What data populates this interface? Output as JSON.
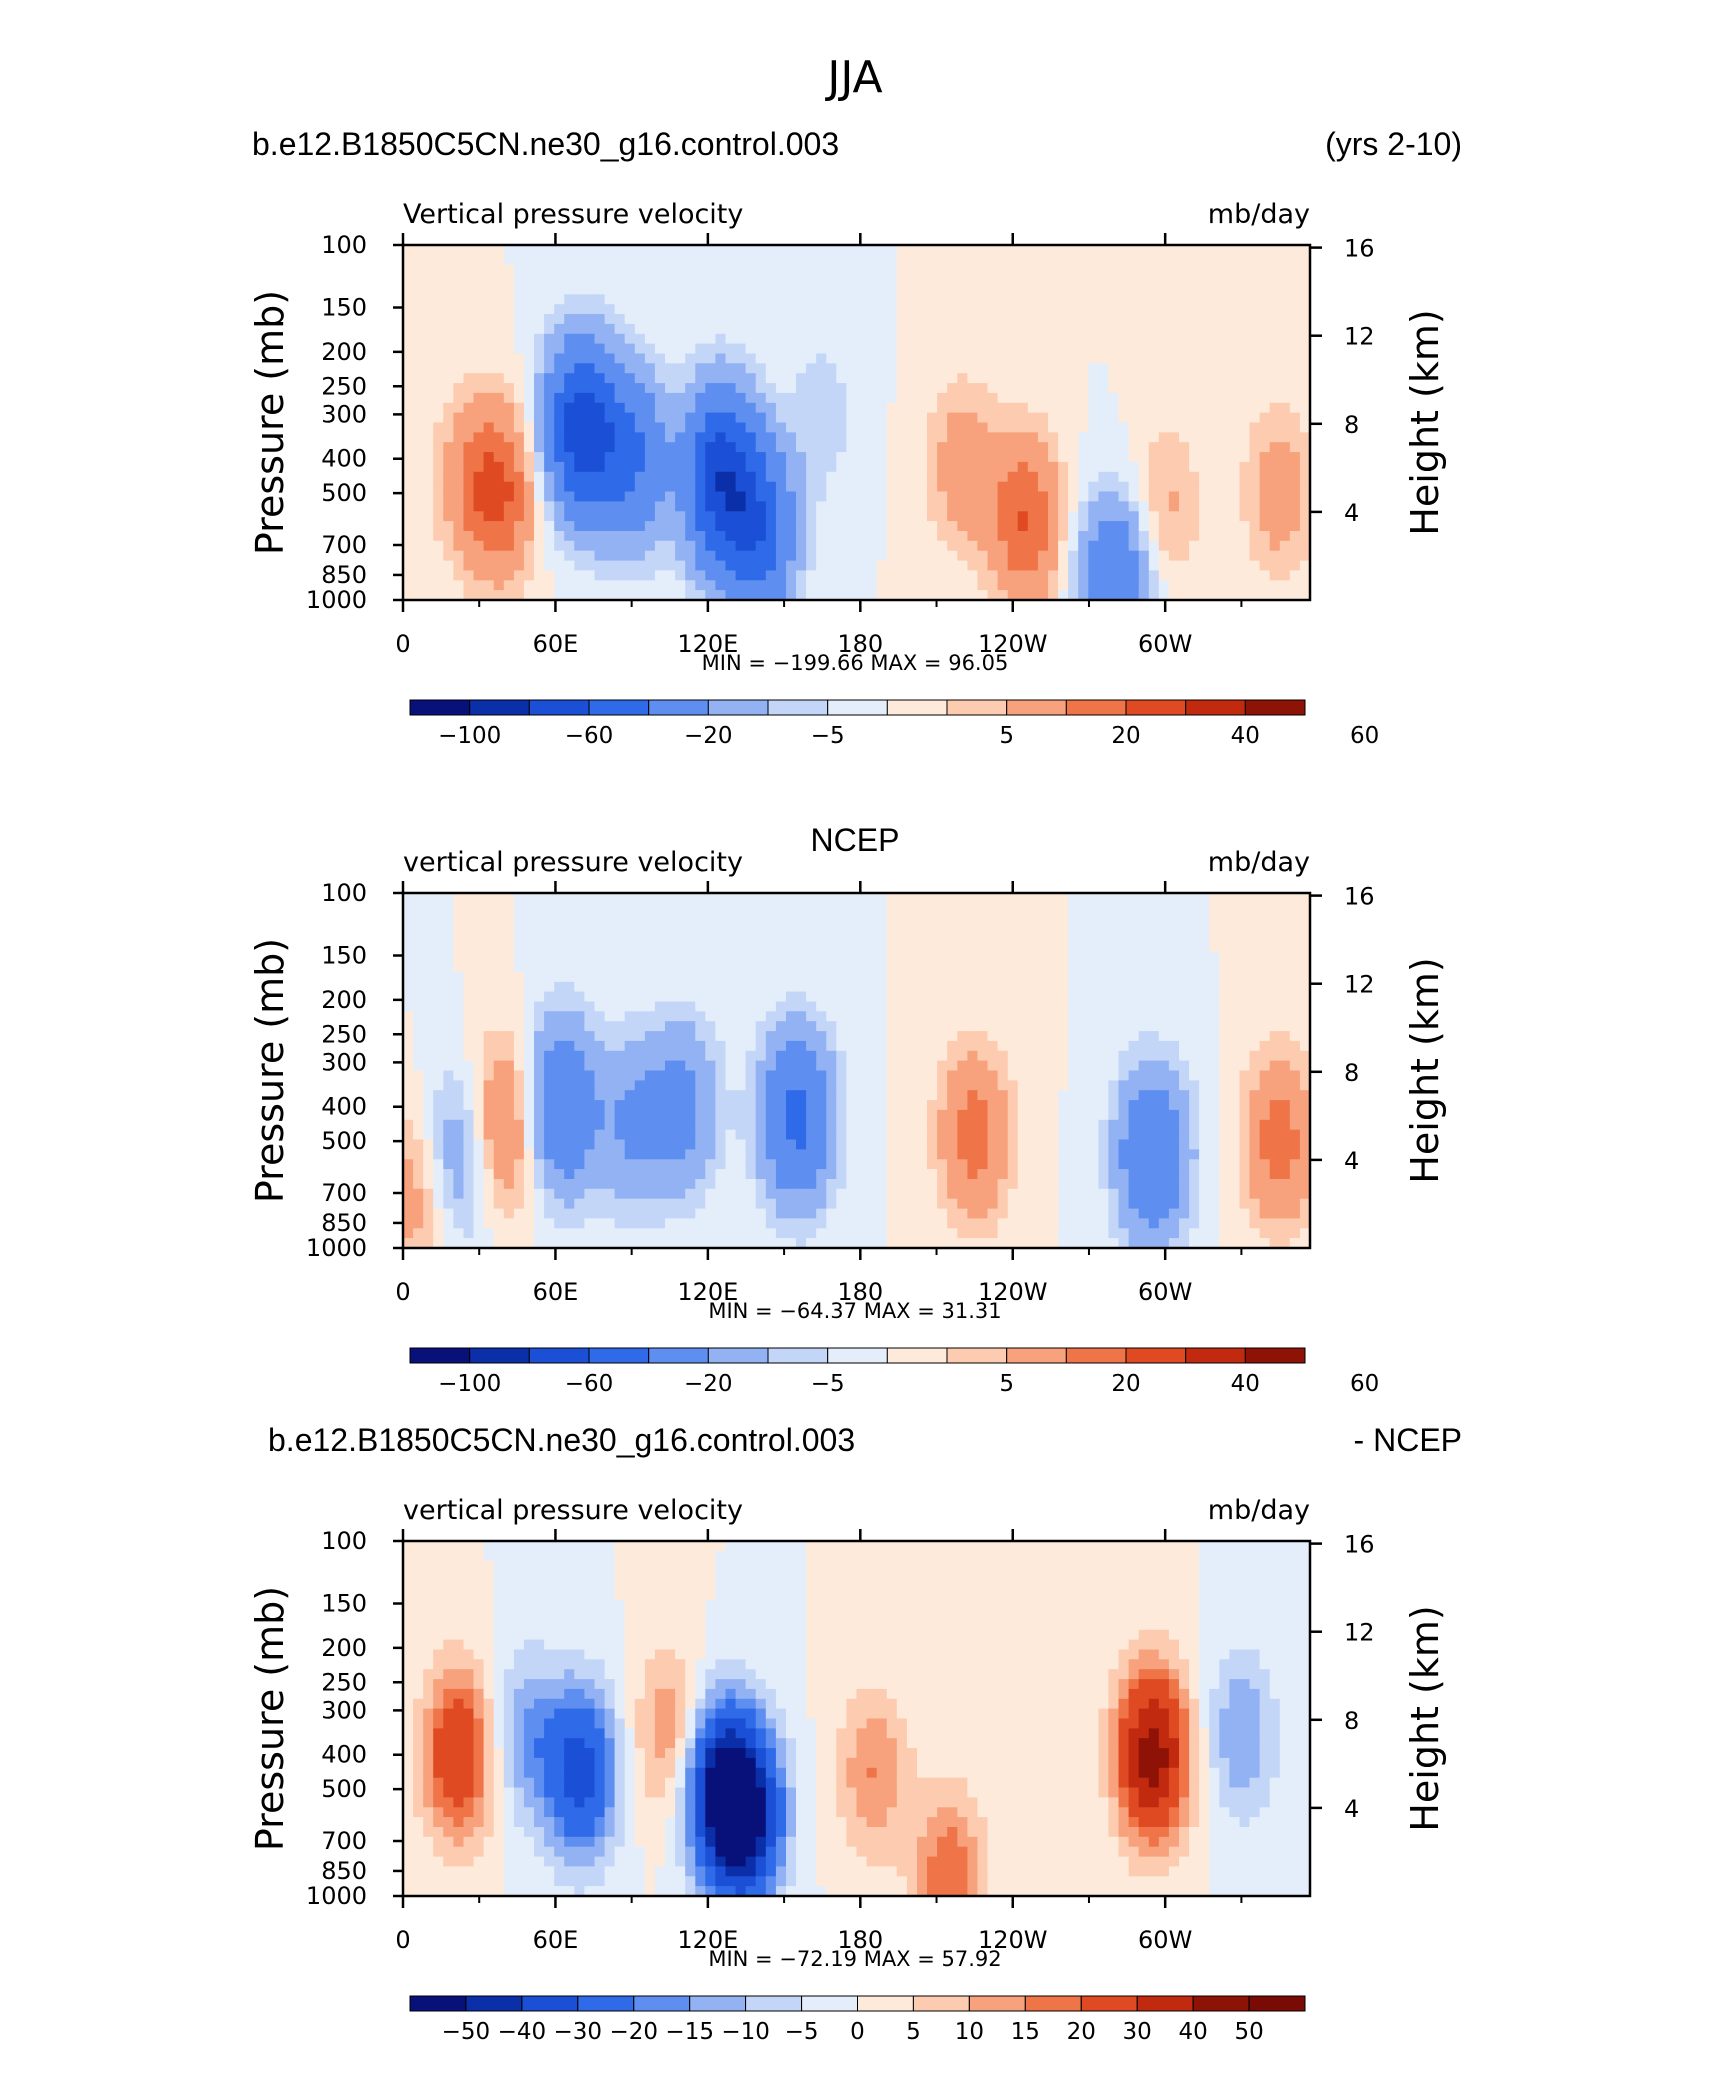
{
  "figure": {
    "season_title": "JJA",
    "right_axis_label": "Height (km)",
    "left_axis_label": "Pressure (mb)",
    "pressure_ticks": [
      "100",
      "150",
      "200",
      "250",
      "300",
      "400",
      "500",
      "700",
      "850",
      "1000"
    ],
    "height_ticks": [
      "16",
      "12",
      "8",
      "4"
    ],
    "lon_ticks": [
      "0",
      "60E",
      "120E",
      "180",
      "120W",
      "60W"
    ]
  },
  "chart_data": [
    {
      "type": "heatmap",
      "panel_title_left": "b.e12.B1850C5CN.ne30_g16.control.003",
      "panel_title_right": "(yrs 2-10)",
      "variable_label": "Vertical pressure velocity",
      "units_label": "mb/day",
      "ylabel": "Pressure (mb)",
      "ylabel_right": "Height (km)",
      "x_ticks": [
        "0",
        "60E",
        "120E",
        "180",
        "120W",
        "60W"
      ],
      "y_ticks": [
        100,
        150,
        200,
        250,
        300,
        400,
        500,
        700,
        850,
        1000
      ],
      "y_ticks_right": [
        16,
        12,
        8,
        4
      ],
      "stats": "MIN = −199.66   MAX =   96.05",
      "min": -199.66,
      "max": 96.05,
      "colorbar_labels": [
        "−100",
        "−60",
        "−20",
        "−5",
        "5",
        "20",
        "40",
        "60"
      ],
      "colors": [
        "#08107a",
        "#0a2fa8",
        "#1b4fd6",
        "#2f6ae8",
        "#5e8ff0",
        "#92b2f4",
        "#c3d6f8",
        "#e4eefb",
        "#fdeadb",
        "#fccbb0",
        "#f7a27c",
        "#ef7448",
        "#df4a22",
        "#c12a0e",
        "#8f1207"
      ],
      "fields": [
        {
          "lon": 25,
          "p": 450,
          "value": 12
        },
        {
          "lon": 38,
          "p": 500,
          "value": 30
        },
        {
          "lon": 70,
          "p": 330,
          "value": -70
        },
        {
          "lon": 90,
          "p": 400,
          "value": -40
        },
        {
          "lon": 125,
          "p": 450,
          "value": -70
        },
        {
          "lon": 140,
          "p": 650,
          "value": -50
        },
        {
          "lon": 165,
          "p": 300,
          "value": -8
        },
        {
          "lon": 220,
          "p": 420,
          "value": 15
        },
        {
          "lon": 245,
          "p": 600,
          "value": 30
        },
        {
          "lon": 280,
          "p": 900,
          "value": -40
        },
        {
          "lon": 300,
          "p": 550,
          "value": 12
        },
        {
          "lon": 345,
          "p": 500,
          "value": 15
        }
      ]
    },
    {
      "type": "heatmap",
      "panel_title_left": "",
      "panel_title_center": "NCEP",
      "variable_label": "vertical pressure velocity",
      "units_label": "mb/day",
      "ylabel": "Pressure (mb)",
      "ylabel_right": "Height (km)",
      "x_ticks": [
        "0",
        "60E",
        "120E",
        "180",
        "120W",
        "60W"
      ],
      "y_ticks": [
        100,
        150,
        200,
        250,
        300,
        400,
        500,
        700,
        850,
        1000
      ],
      "y_ticks_right": [
        16,
        12,
        8,
        4
      ],
      "stats": "MIN = −64.37   MAX =   31.31",
      "min": -64.37,
      "max": 31.31,
      "colorbar_labels": [
        "−100",
        "−60",
        "−20",
        "−5",
        "5",
        "20",
        "40",
        "60"
      ],
      "colors": [
        "#08107a",
        "#0a2fa8",
        "#1b4fd6",
        "#2f6ae8",
        "#5e8ff0",
        "#92b2f4",
        "#c3d6f8",
        "#e4eefb",
        "#fdeadb",
        "#fccbb0",
        "#f7a27c",
        "#ef7448",
        "#df4a22",
        "#c12a0e",
        "#8f1207"
      ],
      "fields": [
        {
          "lon": 5,
          "p": 700,
          "value": 15
        },
        {
          "lon": 22,
          "p": 550,
          "value": -20
        },
        {
          "lon": 40,
          "p": 450,
          "value": 25
        },
        {
          "lon": 62,
          "p": 400,
          "value": -40
        },
        {
          "lon": 90,
          "p": 450,
          "value": -20
        },
        {
          "lon": 110,
          "p": 400,
          "value": -25
        },
        {
          "lon": 155,
          "p": 430,
          "value": -45
        },
        {
          "lon": 225,
          "p": 480,
          "value": 25
        },
        {
          "lon": 295,
          "p": 550,
          "value": -40
        },
        {
          "lon": 345,
          "p": 500,
          "value": 25
        }
      ]
    },
    {
      "type": "heatmap",
      "panel_title_left": "b.e12.B1850C5CN.ne30_g16.control.003",
      "panel_title_right": "- NCEP",
      "variable_label": "vertical pressure velocity",
      "units_label": "mb/day",
      "ylabel": "Pressure (mb)",
      "ylabel_right": "Height (km)",
      "x_ticks": [
        "0",
        "60E",
        "120E",
        "180",
        "120W",
        "60W"
      ],
      "y_ticks": [
        100,
        150,
        200,
        250,
        300,
        400,
        500,
        700,
        850,
        1000
      ],
      "y_ticks_right": [
        16,
        12,
        8,
        4
      ],
      "stats": "MIN = −72.19   MAX =   57.92",
      "min": -72.19,
      "max": 57.92,
      "colorbar_labels": [
        "−50",
        "−40",
        "−30",
        "−20",
        "−15",
        "−10",
        "−5",
        "0",
        "5",
        "10",
        "15",
        "20",
        "30",
        "40",
        "50"
      ],
      "colors": [
        "#08107a",
        "#0a2fa8",
        "#1b4fd6",
        "#2f6ae8",
        "#5e8ff0",
        "#92b2f4",
        "#c3d6f8",
        "#e4eefb",
        "#fdeadb",
        "#fccbb0",
        "#f7a27c",
        "#ef7448",
        "#df4a22",
        "#c12a0e",
        "#8f1207",
        "#7a0a04"
      ],
      "fields": [
        {
          "lon": 22,
          "p": 400,
          "value": 30
        },
        {
          "lon": 48,
          "p": 350,
          "value": -15
        },
        {
          "lon": 70,
          "p": 450,
          "value": -35
        },
        {
          "lon": 105,
          "p": 350,
          "value": 15
        },
        {
          "lon": 125,
          "p": 500,
          "value": -45
        },
        {
          "lon": 135,
          "p": 600,
          "value": -50
        },
        {
          "lon": 185,
          "p": 450,
          "value": 15
        },
        {
          "lon": 215,
          "p": 880,
          "value": 20
        },
        {
          "lon": 295,
          "p": 400,
          "value": 45
        },
        {
          "lon": 330,
          "p": 350,
          "value": -15
        }
      ]
    }
  ]
}
